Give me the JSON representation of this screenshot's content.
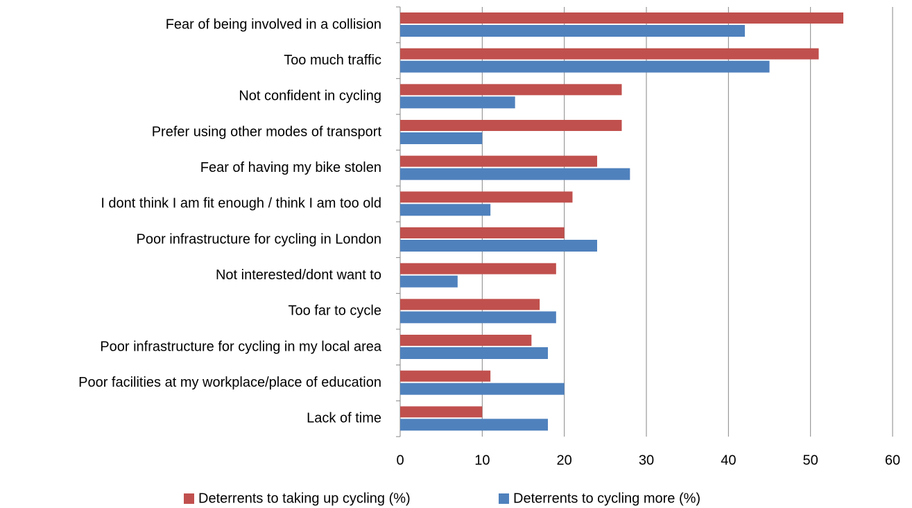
{
  "chart_data": {
    "type": "bar",
    "orientation": "horizontal",
    "categories": [
      "Fear of being involved in a collision",
      "Too much traffic",
      "Not confident in cycling",
      "Prefer using other modes of transport",
      "Fear of having my bike stolen",
      "I dont think I am fit enough / think I am too old",
      "Poor infrastructure for cycling in London",
      "Not interested/dont want to",
      "Too far to cycle",
      "Poor infrastructure for cycling in my local area",
      "Poor facilities at my workplace/place of education",
      "Lack of time"
    ],
    "series": [
      {
        "name": "Deterrents to taking up cycling (%)",
        "color": "#c0504d",
        "values": [
          54,
          51,
          27,
          27,
          24,
          21,
          20,
          19,
          17,
          16,
          11,
          10
        ]
      },
      {
        "name": "Deterrents to cycling more (%)",
        "color": "#4f81bd",
        "values": [
          42,
          45,
          14,
          10,
          28,
          11,
          24,
          7,
          19,
          18,
          20,
          18
        ]
      }
    ],
    "xlim": [
      0,
      60
    ],
    "xticks": [
      0,
      10,
      20,
      30,
      40,
      50,
      60
    ],
    "grid": true,
    "legend": "bottom"
  }
}
